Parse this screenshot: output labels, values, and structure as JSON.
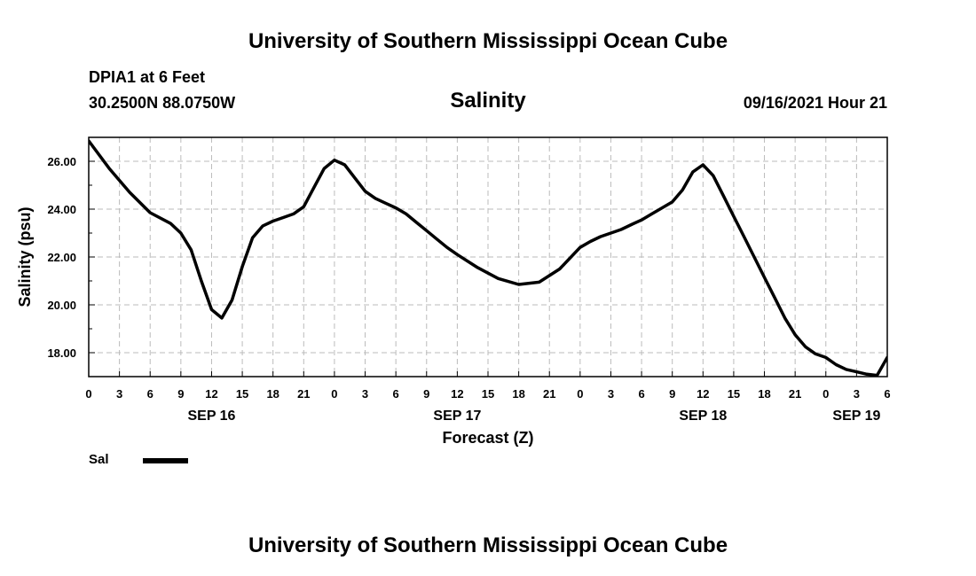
{
  "header": {
    "title_top": "University of Southern Mississippi Ocean Cube",
    "title_bottom": "University of Southern Mississippi Ocean Cube"
  },
  "station": {
    "name": "DPIA1 at 6 Feet",
    "coords": "30.2500N  88.0750W"
  },
  "run": {
    "datetime": "09/16/2021 Hour 21"
  },
  "legend": {
    "label": "Sal",
    "color": "#000000"
  },
  "chart_data": {
    "type": "line",
    "title": "Salinity",
    "xlabel": "Forecast (Z)",
    "ylabel": "Salinity (psu)",
    "xlim": [
      0,
      78
    ],
    "ylim": [
      17.0,
      27.0
    ],
    "y_ticks": [
      "18.00",
      "20.00",
      "22.00",
      "24.00",
      "26.00"
    ],
    "y_tick_values": [
      18,
      20,
      22,
      24,
      26
    ],
    "x_tick_labels": [
      "0",
      "3",
      "6",
      "9",
      "12",
      "15",
      "18",
      "21",
      "0",
      "3",
      "6",
      "9",
      "12",
      "15",
      "18",
      "21",
      "0",
      "3",
      "6",
      "9",
      "12",
      "15",
      "18",
      "21",
      "0",
      "3",
      "6"
    ],
    "date_labels": [
      {
        "hour": 12,
        "label": "SEP 16"
      },
      {
        "hour": 36,
        "label": "SEP 17"
      },
      {
        "hour": 60,
        "label": "SEP 18"
      },
      {
        "hour": 75,
        "label": "SEP 19"
      }
    ],
    "grid": true,
    "series": [
      {
        "name": "Sal",
        "x": [
          0,
          2,
          4,
          6,
          8,
          9,
          10,
          11,
          12,
          13,
          14,
          15,
          16,
          17,
          18,
          19,
          20,
          21,
          22,
          23,
          24,
          25,
          26,
          27,
          28,
          29,
          30,
          31,
          32,
          33,
          34,
          35,
          36,
          38,
          40,
          42,
          44,
          46,
          48,
          49,
          50,
          51,
          52,
          53,
          54,
          55,
          56,
          57,
          58,
          59,
          60,
          61,
          62,
          63,
          64,
          65,
          66,
          67,
          68,
          69,
          70,
          71,
          72,
          73,
          74,
          75,
          76,
          77,
          78
        ],
        "values": [
          26.85,
          25.7,
          24.7,
          23.85,
          23.4,
          23.0,
          22.3,
          21.0,
          19.8,
          19.45,
          20.2,
          21.6,
          22.8,
          23.3,
          23.5,
          23.65,
          23.8,
          24.1,
          24.9,
          25.7,
          26.05,
          25.85,
          25.3,
          24.75,
          24.45,
          24.25,
          24.05,
          23.8,
          23.45,
          23.1,
          22.75,
          22.4,
          22.1,
          21.55,
          21.1,
          20.85,
          20.95,
          21.5,
          22.4,
          22.65,
          22.85,
          23.0,
          23.15,
          23.35,
          23.55,
          23.8,
          24.05,
          24.3,
          24.8,
          25.55,
          25.85,
          25.4,
          24.55,
          23.7,
          22.85,
          22.0,
          21.15,
          20.3,
          19.45,
          18.75,
          18.25,
          17.95,
          17.8,
          17.5,
          17.3,
          17.2,
          17.1,
          17.05,
          17.8
        ]
      }
    ]
  }
}
